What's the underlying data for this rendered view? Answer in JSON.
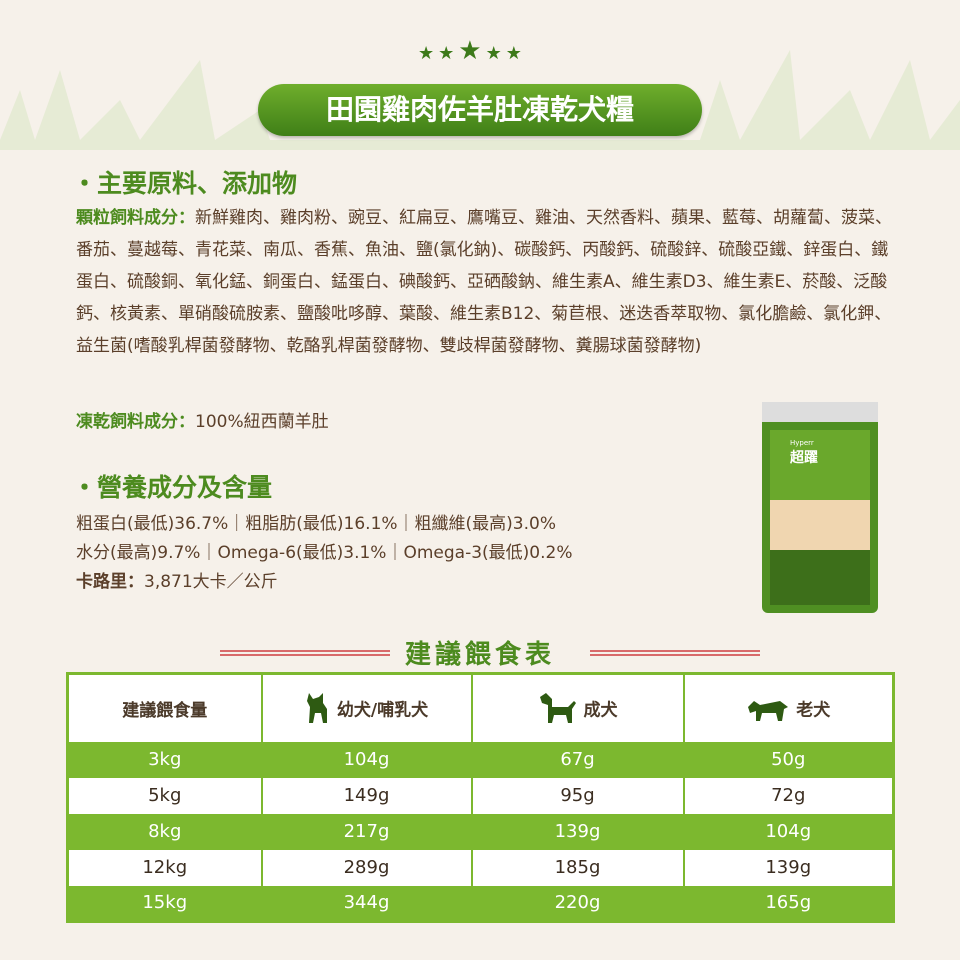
{
  "title": "田園雞肉佐羊肚凍乾犬糧",
  "section1": {
    "heading": "・主要原料、添加物",
    "kibble_label": "顆粒飼料成分：",
    "kibble_text": "新鮮雞肉、雞肉粉、豌豆、紅扁豆、鷹嘴豆、雞油、天然香料、蘋果、藍莓、胡蘿蔔、菠菜、番茄、蔓越莓、青花菜、南瓜、香蕉、魚油、鹽(氯化鈉)、碳酸鈣、丙酸鈣、硫酸鋅、硫酸亞鐵、鋅蛋白、鐵蛋白、硫酸銅、氧化錳、銅蛋白、錳蛋白、碘酸鈣、亞硒酸鈉、維生素A、維生素D3、維生素E、菸酸、泛酸鈣、核黃素、單硝酸硫胺素、鹽酸吡哆醇、葉酸、維生素B12、菊苣根、迷迭香萃取物、氯化膽鹼、氯化鉀、益生菌(嗜酸乳桿菌發酵物、乾酪乳桿菌發酵物、雙歧桿菌發酵物、糞腸球菌發酵物)",
    "freeze_label": "凍乾飼料成分：",
    "freeze_text": "100%紐西蘭羊肚"
  },
  "section2": {
    "heading": "・營養成分及含量",
    "line1": "粗蛋白(最低)36.7%｜粗脂肪(最低)16.1%｜粗纖維(最高)3.0%",
    "line2": "水分(最高)9.7%｜Omega-6(最低)3.1%｜Omega-3(最低)0.2%",
    "cal_label": "卡路里：",
    "cal_text": "3,871大卡／公斤"
  },
  "product": {
    "brand": "Hyperr",
    "brand_cn": "超躍",
    "name": "犬糧"
  },
  "table": {
    "title": "建議餵食表",
    "headers": [
      "建議餵食量",
      "幼犬/哺乳犬",
      "成犬",
      "老犬"
    ],
    "rows": [
      [
        "3kg",
        "104g",
        "67g",
        "50g"
      ],
      [
        "5kg",
        "149g",
        "95g",
        "72g"
      ],
      [
        "8kg",
        "217g",
        "139g",
        "104g"
      ],
      [
        "12kg",
        "289g",
        "185g",
        "139g"
      ],
      [
        "15kg",
        "344g",
        "220g",
        "165g"
      ]
    ]
  },
  "colors": {
    "green": "#7cb82f",
    "dark_green": "#4d8b1f",
    "text": "#5b3f2a"
  }
}
